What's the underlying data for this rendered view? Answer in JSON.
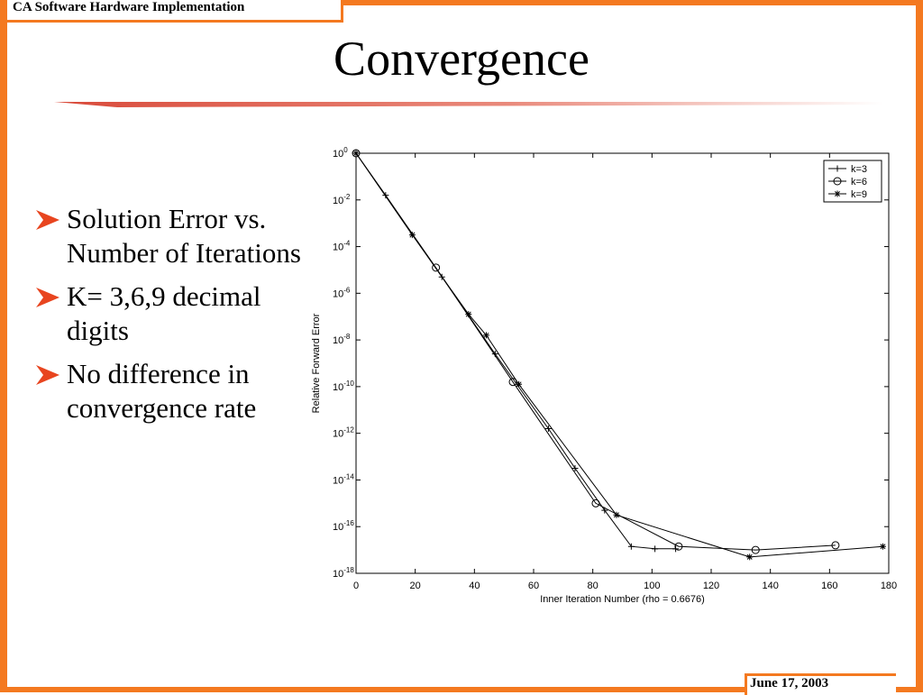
{
  "header": {
    "text": "CA Software Hardware Implementation"
  },
  "footer": {
    "date": "June 17, 2003"
  },
  "slide": {
    "title": "Convergence"
  },
  "bullets": [
    "Solution Error vs. Number of Iterations",
    "K= 3,6,9 decimal digits",
    "No difference in convergence rate"
  ],
  "colors": {
    "accent": "#f47920",
    "title_rule": "#d94a3a"
  },
  "chart_data": {
    "type": "line",
    "title": "",
    "xlabel": "Inner Iteration Number (rho = 0.6676)",
    "ylabel": "Relative Forward Error",
    "xlim": [
      0,
      180
    ],
    "ylim": [
      1e-18,
      1
    ],
    "yscale": "log",
    "xticks": [
      0,
      20,
      40,
      60,
      80,
      100,
      120,
      140,
      160,
      180
    ],
    "yticks": [
      {
        "value": 0,
        "label": "10",
        "sup": "0"
      },
      {
        "value": -2,
        "label": "10",
        "sup": "-2"
      },
      {
        "value": -4,
        "label": "10",
        "sup": "-4"
      },
      {
        "value": -6,
        "label": "10",
        "sup": "-6"
      },
      {
        "value": -8,
        "label": "10",
        "sup": "-8"
      },
      {
        "value": -10,
        "label": "10",
        "sup": "-10"
      },
      {
        "value": -12,
        "label": "10",
        "sup": "-12"
      },
      {
        "value": -14,
        "label": "10",
        "sup": "-14"
      },
      {
        "value": -16,
        "label": "10",
        "sup": "-16"
      },
      {
        "value": -18,
        "label": "10",
        "sup": "-18"
      }
    ],
    "grid": false,
    "legend_position": "top-right",
    "series": [
      {
        "name": "k=3",
        "marker": "plus",
        "x": [
          0,
          10,
          29,
          47,
          65,
          74,
          84,
          93,
          101,
          108
        ],
        "log10_y": [
          0,
          -1.8,
          -5.3,
          -8.6,
          -11.8,
          -13.5,
          -15.3,
          -16.85,
          -16.95,
          -16.95
        ]
      },
      {
        "name": "k=6",
        "marker": "circle",
        "x": [
          0,
          27,
          53,
          81,
          109,
          135,
          162
        ],
        "log10_y": [
          0,
          -4.9,
          -9.8,
          -15.0,
          -16.85,
          -17.0,
          -16.8
        ]
      },
      {
        "name": "k=9",
        "marker": "star",
        "x": [
          0,
          19,
          38,
          44,
          55,
          88,
          133,
          178
        ],
        "log10_y": [
          0,
          -3.5,
          -6.9,
          -7.8,
          -9.9,
          -15.5,
          -17.3,
          -16.85
        ]
      }
    ]
  }
}
